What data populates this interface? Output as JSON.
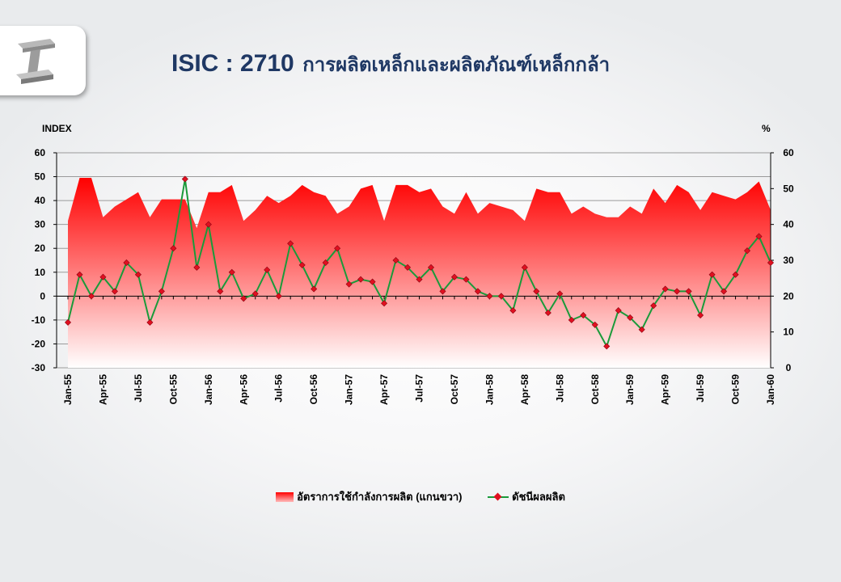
{
  "title": {
    "code": "ISIC : 2710",
    "thai": "การผลิตเหล็กและผลิตภัณฑ์เหล็กกล้า"
  },
  "logo": {
    "icon": "steel-beam-icon"
  },
  "colors": {
    "title": "#1f3864",
    "area_top": "#ff0000",
    "area_bottom": "#ffffff",
    "line": "#1a9a3a",
    "marker": "#e01020"
  },
  "chart_data": {
    "type": "line",
    "ylabel_left": "INDEX",
    "ylabel_right": "%",
    "ylim_left": [
      -30,
      60
    ],
    "ylim_right": [
      0,
      60
    ],
    "yticks_left": [
      -30,
      -20,
      -10,
      0,
      10,
      20,
      30,
      40,
      50,
      60
    ],
    "yticks_right": [
      0,
      10,
      20,
      30,
      40,
      50,
      60
    ],
    "grid": true,
    "legend_position": "bottom",
    "x_labels": [
      "Jan-55",
      "Apr-55",
      "Jul-55",
      "Oct-55",
      "Jan-56",
      "Apr-56",
      "Jul-56",
      "Oct-56",
      "Jan-57",
      "Apr-57",
      "Jul-57",
      "Oct-57",
      "Jan-58",
      "Apr-58",
      "Jul-58",
      "Oct-58",
      "Jan-59",
      "Apr-59",
      "Jul-59",
      "Oct-59",
      "Jan-60"
    ],
    "x": [
      "Jan-55",
      "Feb-55",
      "Mar-55",
      "Apr-55",
      "May-55",
      "Jun-55",
      "Jul-55",
      "Aug-55",
      "Sep-55",
      "Oct-55",
      "Nov-55",
      "Dec-55",
      "Jan-56",
      "Feb-56",
      "Mar-56",
      "Apr-56",
      "May-56",
      "Jun-56",
      "Jul-56",
      "Aug-56",
      "Sep-56",
      "Oct-56",
      "Nov-56",
      "Dec-56",
      "Jan-57",
      "Feb-57",
      "Mar-57",
      "Apr-57",
      "May-57",
      "Jun-57",
      "Jul-57",
      "Aug-57",
      "Sep-57",
      "Oct-57",
      "Nov-57",
      "Dec-57",
      "Jan-58",
      "Feb-58",
      "Mar-58",
      "Apr-58",
      "May-58",
      "Jun-58",
      "Jul-58",
      "Aug-58",
      "Sep-58",
      "Oct-58",
      "Nov-58",
      "Dec-58",
      "Jan-59",
      "Feb-59",
      "Mar-59",
      "Apr-59",
      "May-59",
      "Jun-59",
      "Jul-59",
      "Aug-59",
      "Sep-59",
      "Oct-59",
      "Nov-59",
      "Dec-59",
      "Jan-60"
    ],
    "series": [
      {
        "name": "อัตราการใช้กำลังการผลิต (แกนขวา)",
        "type": "area",
        "axis": "right",
        "values": [
          41,
          53,
          53,
          42,
          45,
          47,
          49,
          42,
          47,
          47,
          47,
          39,
          49,
          49,
          51,
          41,
          44,
          48,
          46,
          48,
          51,
          49,
          48,
          43,
          45,
          50,
          51,
          41,
          51,
          51,
          49,
          50,
          45,
          43,
          49,
          43,
          46,
          45,
          44,
          41,
          50,
          49,
          49,
          43,
          45,
          43,
          42,
          42,
          45,
          43,
          50,
          46,
          51,
          49,
          44,
          49,
          48,
          47,
          49,
          52,
          44
        ]
      },
      {
        "name": "ดัชนีผลผลิต",
        "type": "line",
        "axis": "left",
        "values": [
          -11,
          9,
          0,
          8,
          2,
          14,
          9,
          -11,
          2,
          20,
          49,
          12,
          30,
          2,
          10,
          -1,
          1,
          11,
          0,
          22,
          13,
          3,
          14,
          20,
          5,
          7,
          6,
          -3,
          15,
          12,
          7,
          12,
          2,
          8,
          7,
          2,
          0,
          0,
          -6,
          12,
          2,
          -7,
          1,
          -10,
          -8,
          -12,
          -21,
          -6,
          -9,
          -14,
          -4,
          3,
          2,
          2,
          -8,
          9,
          2,
          9,
          19,
          25,
          14
        ]
      }
    ]
  }
}
